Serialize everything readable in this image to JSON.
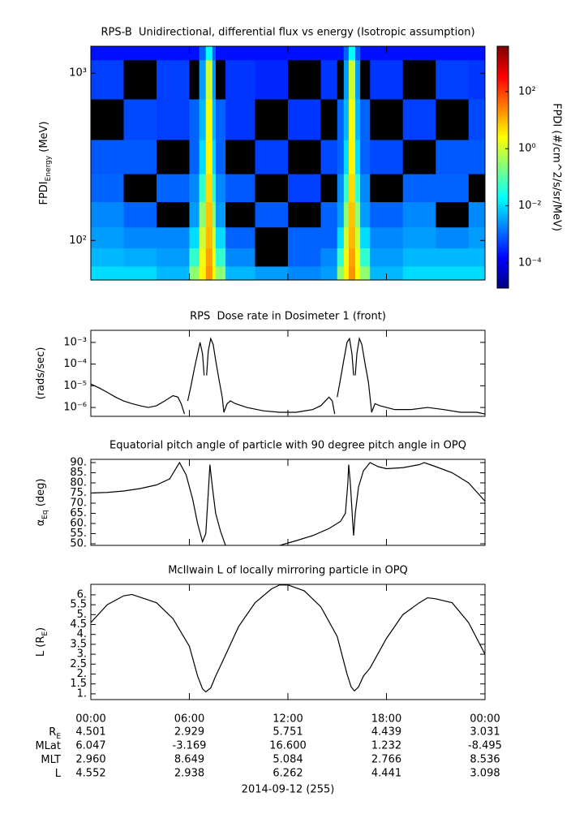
{
  "chart_data": [
    {
      "type": "heatmap",
      "title": "RPS-B  Unidirectional, differential flux vs energy (Isotropic assumption)",
      "ylabel": [
        {
          "text": "FPDI"
        },
        {
          "text": "Energy",
          "sub": true
        },
        {
          "text": " (MeV)"
        }
      ],
      "ylog": true,
      "xlim": [
        0,
        24
      ],
      "ylim": [
        58,
        1450
      ],
      "xticks": [
        {
          "value": 0,
          "label": "00:00"
        },
        {
          "value": 6,
          "label": "06:00"
        },
        {
          "value": 12,
          "label": "12:00"
        },
        {
          "value": 18,
          "label": "18:00"
        },
        {
          "value": 24,
          "label": "00:00"
        }
      ],
      "yticks": [
        {
          "value": 100,
          "label": "10²"
        },
        {
          "value": 1000,
          "label": "10³"
        }
      ],
      "x": [
        0,
        2,
        4,
        6,
        6.6,
        7.0,
        7.2,
        7.4,
        7.6,
        8.2,
        10,
        12,
        14,
        15,
        15.4,
        15.7,
        15.9,
        16.1,
        16.4,
        17,
        19,
        21,
        23,
        24
      ],
      "y": [
        58,
        70,
        90,
        120,
        170,
        250,
        400,
        700,
        1200,
        1450
      ],
      "values": [
        [
          0.01,
          0.01,
          0.005,
          0.3,
          3,
          20,
          20,
          3,
          0.3,
          0.005,
          0.003,
          0.002,
          0.003,
          0.3,
          3,
          20,
          20,
          3,
          0.3,
          0.005,
          0.01,
          0.01,
          0.01
        ],
        [
          0.005,
          0.004,
          0.003,
          0.05,
          2,
          15,
          15,
          2,
          0.05,
          0.002,
          null,
          0.001,
          0.002,
          0.05,
          2,
          15,
          15,
          2,
          0.05,
          0.003,
          0.005,
          0.005,
          0.005
        ],
        [
          0.003,
          0.002,
          0.002,
          0.01,
          1,
          10,
          10,
          1,
          0.01,
          0.001,
          null,
          0.001,
          0.001,
          0.01,
          1,
          10,
          10,
          1,
          0.01,
          0.002,
          0.003,
          0.002,
          0.003
        ],
        [
          0.002,
          0.001,
          null,
          0.003,
          0.3,
          8,
          8,
          0.3,
          0.003,
          null,
          0.0008,
          null,
          0.001,
          0.003,
          0.3,
          8,
          8,
          0.3,
          0.003,
          0.001,
          0.002,
          null,
          0.002
        ],
        [
          0.001,
          null,
          0.001,
          0.002,
          0.05,
          5,
          5,
          0.05,
          0.002,
          0.0008,
          null,
          0.0005,
          null,
          0.002,
          0.05,
          5,
          5,
          0.05,
          0.002,
          null,
          0.001,
          0.001,
          null
        ],
        [
          0.0008,
          0.0008,
          null,
          0.001,
          0.01,
          3,
          3,
          0.01,
          0.001,
          null,
          0.0005,
          null,
          0.0006,
          0.001,
          0.01,
          3,
          3,
          0.01,
          0.001,
          0.0006,
          null,
          0.0008,
          0.0008
        ],
        [
          null,
          0.0006,
          0.0005,
          0.001,
          0.005,
          2,
          2,
          0.005,
          0.001,
          0.0004,
          null,
          0.0004,
          null,
          0.001,
          0.005,
          2,
          2,
          0.005,
          0.001,
          null,
          0.0005,
          null,
          0.0006
        ],
        [
          0.0005,
          null,
          0.0005,
          null,
          0.003,
          1,
          1,
          0.003,
          null,
          0.0004,
          0.0003,
          null,
          0.0004,
          null,
          0.003,
          1,
          1,
          0.003,
          null,
          0.0004,
          null,
          0.0005,
          0.0004
        ],
        [
          0.0002,
          0.0002,
          0.0002,
          0.0002,
          0.001,
          0.02,
          0.02,
          0.001,
          0.0002,
          0.0002,
          0.0002,
          0.0002,
          0.0002,
          0.0002,
          0.001,
          0.02,
          0.02,
          0.001,
          0.0002,
          0.0002,
          0.0002,
          0.0002,
          0.0002
        ]
      ],
      "colorbar": {
        "label": "FPDI (#/cm^2/s/sr/MeV)",
        "lim": [
          1.3e-05,
          3900
        ],
        "ticks": [
          {
            "value": 0.0001,
            "label": "10⁻⁴"
          },
          {
            "value": 0.01,
            "label": "10⁻²"
          },
          {
            "value": 1,
            "label": "10⁰"
          },
          {
            "value": 100,
            "label": "10²"
          }
        ]
      }
    },
    {
      "type": "line",
      "title": "RPS  Dose rate in Dosimeter 1 (front)",
      "ylabel": [
        {
          "text": "(rads/sec)"
        }
      ],
      "ylog": true,
      "color": "#000000",
      "xlim": [
        0,
        24
      ],
      "ylim": [
        3.9e-07,
        0.0036
      ],
      "xticks": [
        {
          "value": 0,
          "label": "00:00"
        },
        {
          "value": 6,
          "label": "06:00"
        },
        {
          "value": 12,
          "label": "12:00"
        },
        {
          "value": 18,
          "label": "18:00"
        },
        {
          "value": 24,
          "label": "00:00"
        }
      ],
      "yticks": [
        {
          "value": 1e-06,
          "label": "10⁻⁶"
        },
        {
          "value": 1e-05,
          "label": "10⁻⁵"
        },
        {
          "value": 0.0001,
          "label": "10⁻⁴"
        },
        {
          "value": 0.001,
          "label": "10⁻³"
        }
      ],
      "x": [
        0,
        0.5,
        1,
        1.5,
        2,
        2.5,
        3,
        3.5,
        4,
        4.5,
        5,
        5.3,
        5.5,
        5.7,
        null,
        5.9,
        6.1,
        6.3,
        6.5,
        6.65,
        6.8,
        6.9,
        null,
        7.05,
        7.15,
        7.3,
        7.45,
        7.6,
        7.8,
        8.0,
        8.1,
        8.3,
        8.5,
        8.8,
        9.5,
        10.5,
        11.5,
        12.5,
        13.5,
        14,
        14.5,
        14.7,
        14.85,
        null,
        15.0,
        15.2,
        15.4,
        15.6,
        15.75,
        15.9,
        16.0,
        null,
        16.1,
        16.2,
        16.35,
        16.5,
        16.7,
        16.9,
        17.0,
        17.1,
        17.3,
        17.6,
        18.5,
        19.5,
        20.5,
        21.5,
        22.5,
        23.5,
        24
      ],
      "values": [
        1.2e-05,
        8e-06,
        5e-06,
        3e-06,
        2e-06,
        1.5e-06,
        1.2e-06,
        1e-06,
        1.2e-06,
        2e-06,
        3.5e-06,
        3e-06,
        1.5e-06,
        5e-07,
        null,
        2e-06,
        1e-05,
        6e-05,
        0.0003,
        0.001,
        0.0003,
        3e-05,
        null,
        3e-05,
        0.0004,
        0.0015,
        0.0008,
        0.00015,
        2e-05,
        3e-06,
        6e-07,
        1.5e-06,
        2e-06,
        1.5e-06,
        1e-06,
        7e-07,
        6e-07,
        6e-07,
        8e-07,
        1.2e-06,
        3e-06,
        2e-06,
        5e-07,
        null,
        3e-06,
        2e-05,
        0.00015,
        0.001,
        0.0015,
        0.0003,
        3e-05,
        null,
        3e-05,
        0.0003,
        0.0015,
        0.0008,
        0.0001,
        1.5e-05,
        3e-06,
        6e-07,
        1.5e-06,
        1.2e-06,
        8e-07,
        8e-07,
        1e-06,
        8e-07,
        6e-07,
        6e-07,
        5e-07
      ]
    },
    {
      "type": "line",
      "title": "Equatorial pitch angle of particle with 90 degree pitch angle in OPQ",
      "ylabel": [
        {
          "text": "α"
        },
        {
          "text": "Eq",
          "sub": true
        },
        {
          "text": " (deg)"
        }
      ],
      "ylog": false,
      "color": "#000000",
      "xlim": [
        0,
        24
      ],
      "ylim": [
        49.2,
        91.6
      ],
      "xticks": [
        {
          "value": 0,
          "label": "00:00"
        },
        {
          "value": 6,
          "label": "06:00"
        },
        {
          "value": 12,
          "label": "12:00"
        },
        {
          "value": 18,
          "label": "18:00"
        },
        {
          "value": 24,
          "label": "00:00"
        }
      ],
      "yticks": [
        {
          "value": 50,
          "label": "50."
        },
        {
          "value": 55,
          "label": "55."
        },
        {
          "value": 60,
          "label": "60."
        },
        {
          "value": 65,
          "label": "65."
        },
        {
          "value": 70,
          "label": "70."
        },
        {
          "value": 75,
          "label": "75."
        },
        {
          "value": 80,
          "label": "80."
        },
        {
          "value": 85,
          "label": "85."
        },
        {
          "value": 90,
          "label": "90."
        }
      ],
      "x": [
        0,
        1,
        2,
        3,
        4,
        4.8,
        5.4,
        5.8,
        6.2,
        6.5,
        6.8,
        7.0,
        7.15,
        7.25,
        7.4,
        7.6,
        7.9,
        8.2,
        null,
        11.5,
        12.5,
        13.5,
        14.5,
        15.2,
        15.5,
        15.65,
        15.7,
        15.8,
        15.95,
        16,
        16.1,
        16.3,
        16.6,
        17,
        17.5,
        18,
        19,
        20,
        20.3,
        21,
        22,
        23,
        24
      ],
      "values": [
        75,
        75.3,
        76,
        77.2,
        79,
        82,
        90,
        84,
        72,
        60,
        51,
        55,
        75,
        89,
        78,
        65,
        56,
        49.2,
        null,
        49.2,
        51.5,
        54,
        57.5,
        61,
        65,
        80,
        89,
        80,
        60,
        54,
        65,
        78,
        86,
        90,
        88,
        87,
        87.5,
        89,
        90,
        88,
        85,
        80,
        71
      ]
    },
    {
      "type": "line",
      "title": "McIlwain L of locally mirroring particle in OPQ",
      "ylabel": [
        {
          "text": "L (R"
        },
        {
          "text": "E",
          "sub": true
        },
        {
          "text": ")"
        }
      ],
      "ylog": false,
      "color": "#000000",
      "xlim": [
        0,
        24
      ],
      "ylim": [
        0.71,
        6.53
      ],
      "xticks": [
        {
          "value": 0,
          "label": "00:00"
        },
        {
          "value": 6,
          "label": "06:00"
        },
        {
          "value": 12,
          "label": "12:00"
        },
        {
          "value": 18,
          "label": "18:00"
        },
        {
          "value": 24,
          "label": "00:00"
        }
      ],
      "yticks": [
        {
          "value": 1,
          "label": "1."
        },
        {
          "value": 1.5,
          "label": "1.5"
        },
        {
          "value": 2,
          "label": "2."
        },
        {
          "value": 2.5,
          "label": "2.5"
        },
        {
          "value": 3,
          "label": "3."
        },
        {
          "value": 3.5,
          "label": "3.5"
        },
        {
          "value": 4,
          "label": "4."
        },
        {
          "value": 4.5,
          "label": "4.5"
        },
        {
          "value": 5,
          "label": "5."
        },
        {
          "value": 5.5,
          "label": "5.5"
        },
        {
          "value": 6,
          "label": "6."
        }
      ],
      "x": [
        0,
        1,
        2,
        2.5,
        4,
        5,
        6,
        6.5,
        6.8,
        7.0,
        7.3,
        7.6,
        8,
        9,
        10,
        11,
        11.5,
        12,
        13,
        14,
        15,
        15.6,
        15.85,
        16.05,
        16.3,
        16.6,
        17,
        18,
        19,
        20,
        20.5,
        21,
        22,
        23,
        24
      ],
      "values": [
        4.6,
        5.5,
        5.95,
        6.02,
        5.6,
        4.8,
        3.4,
        1.9,
        1.25,
        1.1,
        1.3,
        1.9,
        2.6,
        4.4,
        5.6,
        6.3,
        6.5,
        6.5,
        6.2,
        5.4,
        3.9,
        2.0,
        1.35,
        1.15,
        1.35,
        1.9,
        2.3,
        3.8,
        5.0,
        5.6,
        5.85,
        5.8,
        5.6,
        4.6,
        3.0
      ]
    }
  ],
  "ephemeris": {
    "rows": [
      {
        "label": [
          {
            "text": "R"
          },
          {
            "text": "E",
            "sub": true
          }
        ],
        "values": [
          "4.501",
          "2.929",
          "5.751",
          "4.439",
          "3.031"
        ]
      },
      {
        "label": [
          {
            "text": "MLat"
          }
        ],
        "values": [
          "6.047",
          "-3.169",
          "16.600",
          "1.232",
          "-8.495"
        ]
      },
      {
        "label": [
          {
            "text": "MLT"
          }
        ],
        "values": [
          "2.960",
          "8.649",
          "5.084",
          "2.766",
          "8.536"
        ]
      },
      {
        "label": [
          {
            "text": "L"
          }
        ],
        "values": [
          "4.552",
          "2.938",
          "6.262",
          "4.441",
          "3.098"
        ]
      }
    ],
    "date": "2014-09-12 (255)"
  }
}
